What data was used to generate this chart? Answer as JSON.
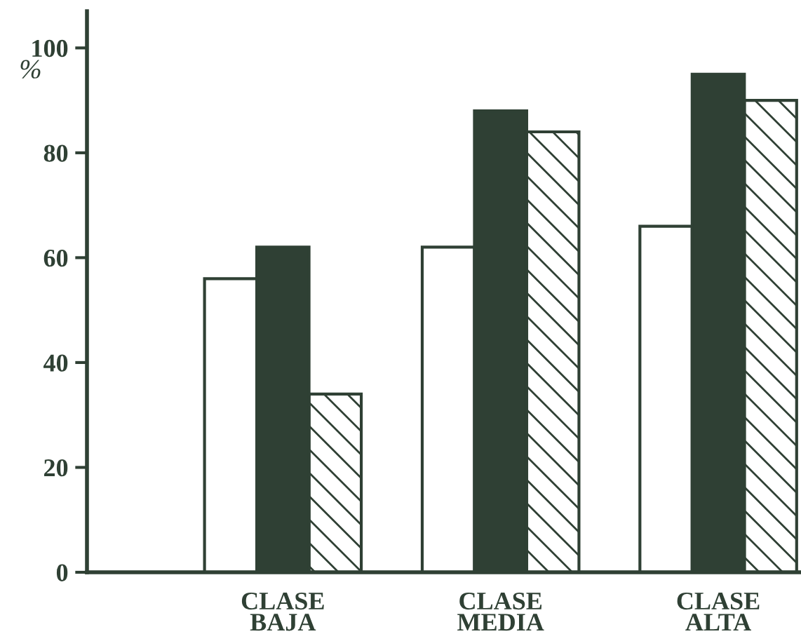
{
  "chart_data": {
    "type": "bar",
    "ylabel": "%",
    "categories": [
      "CLASE\nBAJA",
      "CLASE\nMEDIA",
      "CLASE\nALTA"
    ],
    "series": [
      {
        "color": "#ffffff",
        "values": [
          56,
          62,
          66
        ]
      },
      {
        "color": "#2f4034",
        "values": [
          62,
          88,
          95
        ]
      },
      {
        "color": "#2f4034",
        "values": [
          34,
          84,
          90
        ]
      }
    ],
    "ylim": [
      0,
      107
    ],
    "yticks": [
      0,
      20,
      40,
      60,
      80,
      100
    ],
    "grid": false,
    "legend": false
  }
}
